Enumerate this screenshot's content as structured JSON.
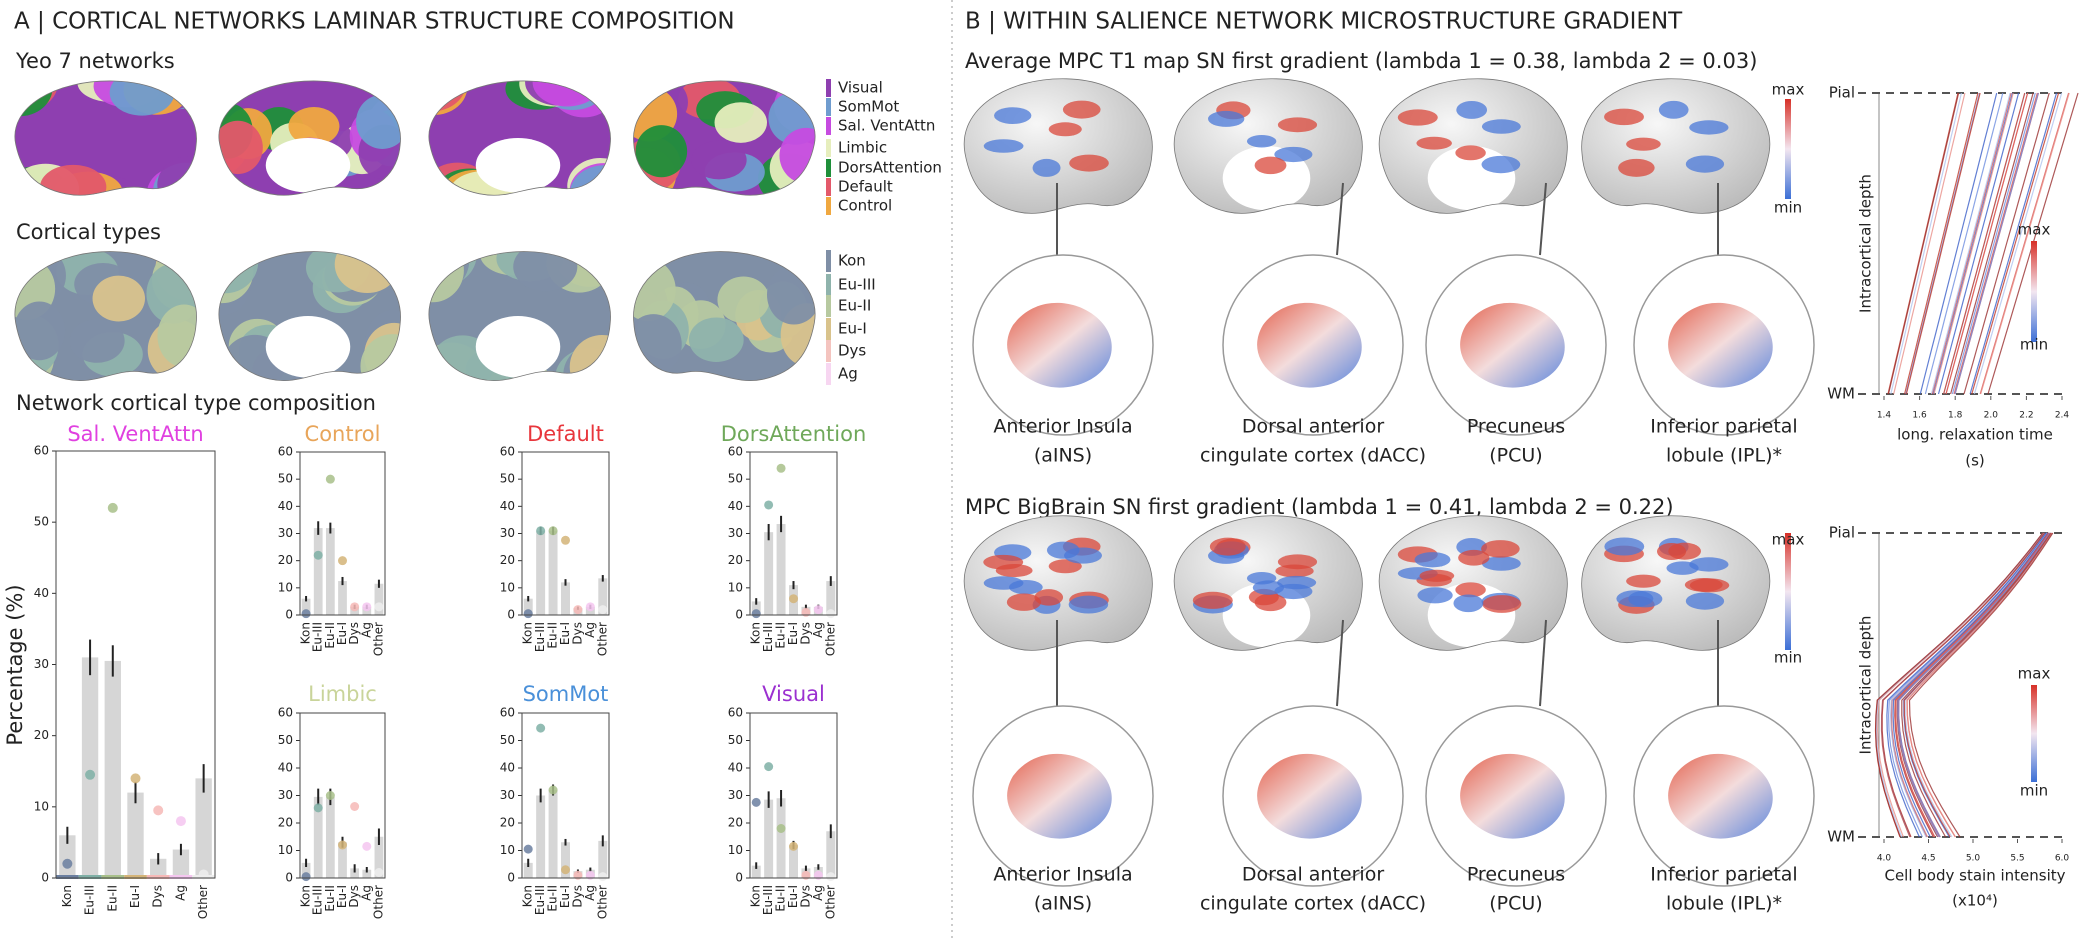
{
  "panel_a": {
    "title": "A | CORTICAL NETWORKS LAMINAR STRUCTURE COMPOSITION",
    "networks_title": "Yeo 7 networks",
    "networks": [
      {
        "name": "Visual",
        "color": "#8e3fb0"
      },
      {
        "name": "SomMot",
        "color": "#6f9ccf"
      },
      {
        "name": "Sal. VentAttn",
        "color": "#c64be0"
      },
      {
        "name": "Limbic",
        "color": "#e6eebd"
      },
      {
        "name": "DorsAttention",
        "color": "#1f8f3a"
      },
      {
        "name": "Default",
        "color": "#e3596a"
      },
      {
        "name": "Control",
        "color": "#f0a840"
      }
    ],
    "types_title": "Cortical types",
    "types": [
      {
        "name": "Kon",
        "color": "#7f8fa6"
      },
      {
        "name": "Eu-III",
        "color": "#8fb3ac"
      },
      {
        "name": "Eu-II",
        "color": "#b7c9a0"
      },
      {
        "name": "Eu-I",
        "color": "#d9c38c"
      },
      {
        "name": "Dys",
        "color": "#f4c4bf"
      },
      {
        "name": "Ag",
        "color": "#f7d6f1"
      }
    ],
    "composition_title": "Network cortical type composition",
    "y_label": "Percentage (%)"
  },
  "panel_b": {
    "title": "B | WITHIN SALIENCE NETWORK MICROSTRUCTURE GRADIENT",
    "rows": [
      {
        "subtitle": "Average MPC T1 map SN first gradient (lambda 1 = 0.38, lambda 2 = 0.03)",
        "regions": [
          [
            "Anterior Insula",
            "(aINS)"
          ],
          [
            "Dorsal anterior",
            "cingulate cortex (dACC)"
          ],
          [
            "Precuneus",
            "(PCU)"
          ],
          [
            "Inferior parietal",
            "lobule (IPL)*"
          ]
        ],
        "colorbar": [
          "max",
          "min"
        ]
      },
      {
        "subtitle": "MPC BigBrain SN first gradient (lambda 1 = 0.41, lambda 2 = 0.22)",
        "regions": [
          [
            "Anterior Insula",
            "(aINS)"
          ],
          [
            "Dorsal anterior",
            "cingulate cortex (dACC)"
          ],
          [
            "Precuneus",
            "(PCU)"
          ],
          [
            "Inferior parietal",
            "lobule (IPL)*"
          ]
        ],
        "colorbar": [
          "max",
          "min"
        ]
      }
    ]
  },
  "chart_data": [
    {
      "type": "bar",
      "title": "Sal. VentAttn",
      "title_color": "#e040e0",
      "categories": [
        "Kon",
        "Eu-III",
        "Eu-II",
        "Eu-I",
        "Dys",
        "Ag",
        "Other"
      ],
      "values": [
        6,
        31,
        30.5,
        12,
        2.7,
        4,
        14
      ],
      "errors": [
        1.2,
        2.5,
        2.2,
        1.5,
        0.8,
        0.8,
        2
      ],
      "points": [
        2,
        14.5,
        52,
        14,
        9.5,
        8,
        0.5
      ],
      "point_colors": [
        "#6b7fa0",
        "#7fb0a6",
        "#a8c08a",
        "#d4b478",
        "#f6b8b6",
        "#f5c6f0",
        "#eeeeee"
      ],
      "bar_color": "#d6d6d6",
      "ylim": [
        0,
        60
      ],
      "yticks": [
        0,
        10,
        20,
        30,
        40,
        50,
        60
      ]
    },
    {
      "type": "bar",
      "title": "Control",
      "title_color": "#e8a55a",
      "categories": [
        "Kon",
        "Eu-III",
        "Eu-II",
        "Eu-I",
        "Dys",
        "Ag",
        "Other"
      ],
      "values": [
        6,
        32,
        32,
        12.5,
        3,
        3,
        11.5
      ],
      "errors": [
        1,
        2.5,
        2,
        1.5,
        0.8,
        0.8,
        1.5
      ],
      "points": [
        0.5,
        22,
        50,
        20,
        3,
        3,
        3
      ],
      "point_colors": [
        "#6b7fa0",
        "#7fb0a6",
        "#a8c08a",
        "#d4b478",
        "#f6b8b6",
        "#f5c6f0",
        "#eeeeee"
      ],
      "bar_color": "#d6d6d6",
      "ylim": [
        0,
        60
      ],
      "yticks": [
        0,
        10,
        20,
        30,
        40,
        50,
        60
      ]
    },
    {
      "type": "bar",
      "title": "Default",
      "title_color": "#e8363c",
      "categories": [
        "Kon",
        "Eu-III",
        "Eu-II",
        "Eu-I",
        "Dys",
        "Ag",
        "Other"
      ],
      "values": [
        6,
        31,
        31,
        12,
        2.5,
        3,
        13.5
      ],
      "errors": [
        1,
        1.5,
        1.5,
        1.2,
        0.6,
        0.8,
        1.2
      ],
      "points": [
        0.5,
        31,
        31,
        27.5,
        2,
        3,
        2
      ],
      "point_colors": [
        "#6b7fa0",
        "#7fb0a6",
        "#a8c08a",
        "#d4b478",
        "#f6b8b6",
        "#f5c6f0",
        "#eeeeee"
      ],
      "bar_color": "#d6d6d6",
      "ylim": [
        0,
        60
      ],
      "yticks": [
        0,
        10,
        20,
        30,
        40,
        50,
        60
      ]
    },
    {
      "type": "bar",
      "title": "DorsAttention",
      "title_color": "#6fa85a",
      "categories": [
        "Kon",
        "Eu-III",
        "Eu-II",
        "Eu-I",
        "Dys",
        "Ag",
        "Other"
      ],
      "values": [
        5,
        30.5,
        33.5,
        11,
        3,
        3,
        12.5
      ],
      "errors": [
        1.2,
        3,
        3,
        1.5,
        0.8,
        0.8,
        1.8
      ],
      "points": [
        0.5,
        40.5,
        54,
        6,
        1,
        2,
        0.5
      ],
      "point_colors": [
        "#6b7fa0",
        "#7fb0a6",
        "#a8c08a",
        "#d4b478",
        "#f6b8b6",
        "#f5c6f0",
        "#eeeeee"
      ],
      "bar_color": "#d6d6d6",
      "ylim": [
        0,
        60
      ],
      "yticks": [
        0,
        10,
        20,
        30,
        40,
        50,
        60
      ]
    },
    {
      "type": "bar",
      "title": "Limbic",
      "title_color": "#c9d49a",
      "categories": [
        "Kon",
        "Eu-III",
        "Eu-II",
        "Eu-I",
        "Dys",
        "Ag",
        "Other"
      ],
      "values": [
        5.5,
        29.5,
        29.5,
        13,
        3.5,
        3,
        15
      ],
      "errors": [
        1.5,
        3,
        3,
        2,
        1.5,
        1,
        3
      ],
      "points": [
        0.5,
        25.5,
        30,
        12,
        26,
        11.5,
        2
      ],
      "point_colors": [
        "#6b7fa0",
        "#7fb0a6",
        "#a8c08a",
        "#d4b478",
        "#f6b8b6",
        "#f5c6f0",
        "#eeeeee"
      ],
      "bar_color": "#d6d6d6",
      "ylim": [
        0,
        60
      ],
      "yticks": [
        0,
        10,
        20,
        30,
        40,
        50,
        60
      ]
    },
    {
      "type": "bar",
      "title": "SomMot",
      "title_color": "#4a90d9",
      "categories": [
        "Kon",
        "Eu-III",
        "Eu-II",
        "Eu-I",
        "Dys",
        "Ag",
        "Other"
      ],
      "values": [
        5.5,
        30,
        32,
        13,
        2.5,
        3,
        13.5
      ],
      "errors": [
        1.5,
        2.5,
        2,
        1.2,
        0.6,
        0.8,
        2
      ],
      "points": [
        10.5,
        54.5,
        32,
        3,
        1,
        1,
        0.5
      ],
      "point_colors": [
        "#6b7fa0",
        "#7fb0a6",
        "#a8c08a",
        "#d4b478",
        "#f6b8b6",
        "#f5c6f0",
        "#eeeeee"
      ],
      "bar_color": "#d6d6d6",
      "ylim": [
        0,
        60
      ],
      "yticks": [
        0,
        10,
        20,
        30,
        40,
        50,
        60
      ]
    },
    {
      "type": "bar",
      "title": "Visual",
      "title_color": "#9b30d0",
      "categories": [
        "Kon",
        "Eu-III",
        "Eu-II",
        "Eu-I",
        "Dys",
        "Ag",
        "Other"
      ],
      "values": [
        4.5,
        28.5,
        29,
        12,
        3.5,
        4,
        17
      ],
      "errors": [
        1.2,
        3,
        3,
        1.5,
        1,
        1,
        2.5
      ],
      "points": [
        27.5,
        40.5,
        18,
        11.5,
        1,
        1,
        0.5
      ],
      "point_colors": [
        "#6b7fa0",
        "#7fb0a6",
        "#a8c08a",
        "#d4b478",
        "#f6b8b6",
        "#f5c6f0",
        "#eeeeee"
      ],
      "bar_color": "#d6d6d6",
      "ylim": [
        0,
        60
      ],
      "yticks": [
        0,
        10,
        20,
        30,
        40,
        50,
        60
      ]
    },
    {
      "type": "profile",
      "y_label": "Intracortical depth",
      "y_top": "Pial",
      "y_bottom": "WM",
      "x_label": "long. relaxation time",
      "x_unit": "(s)",
      "xlim": [
        1.4,
        2.4
      ],
      "xticks": [
        1.4,
        1.6,
        1.8,
        {
          "value": 2,
          "label": "2.0"
        },
        2.2,
        2.4
      ],
      "colorbar": [
        "max",
        "min"
      ]
    },
    {
      "type": "profile",
      "y_label": "Intracortical depth",
      "y_top": "Pial",
      "y_bottom": "WM",
      "x_label": "Cell body stain intensity",
      "x_unit": "(x10⁴)",
      "xlim": [
        4,
        6
      ],
      "xticks": [
        {
          "value": 4,
          "label": "4.0"
        },
        4.5,
        {
          "value": 5,
          "label": "5.0"
        },
        5.5,
        {
          "value": 6,
          "label": "6.0"
        }
      ],
      "colorbar": [
        "max",
        "min"
      ]
    }
  ]
}
